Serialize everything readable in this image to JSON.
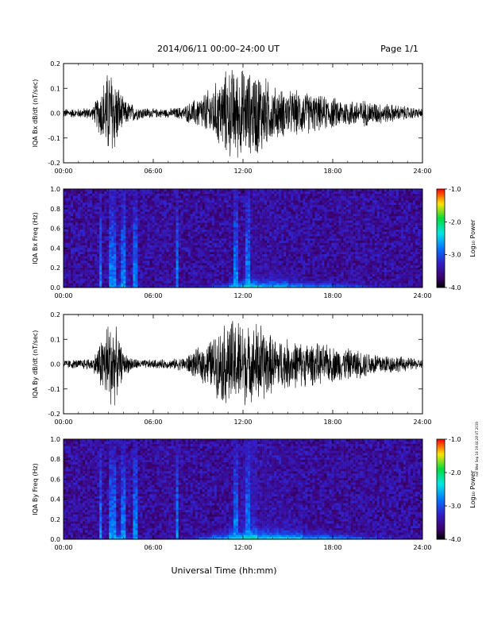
{
  "header": {
    "title": "2014/06/11   00:00–24:00 UT",
    "page": "Page 1/1"
  },
  "side_note": "ndf Wed Sep 18 19:44:28 UT 2019",
  "x_axis_label": "Universal Time (hh:mm)",
  "colorbar": {
    "label": "Log₁₀ Power",
    "ticks": [
      "-1.0",
      "-2.0",
      "-3.0",
      "-4.0"
    ],
    "range": [
      -4.0,
      -1.0
    ]
  },
  "chart_data": [
    {
      "type": "line",
      "ylabel": "IQA Bx dB/dt (nT/sec)",
      "xlim": [
        0,
        24
      ],
      "ylim": [
        -0.2,
        0.2
      ],
      "x_tick_labels": [
        "00:00",
        "06:00",
        "12:00",
        "18:00",
        "24:00"
      ],
      "y_tick_labels": [
        "0.2",
        "0.1",
        "0.0",
        "-0.1",
        "-0.2"
      ],
      "series": [
        {
          "x": [
            0,
            1,
            2,
            3,
            3.3,
            4,
            5,
            6,
            7,
            8,
            9,
            10,
            11,
            11.5,
            12,
            12.5,
            13,
            14,
            15,
            16,
            17,
            18,
            19,
            20,
            21,
            22,
            23,
            24
          ],
          "y": [
            0.02,
            0.02,
            0.03,
            0.2,
            0.2,
            0.06,
            0.03,
            0.02,
            0.02,
            0.03,
            0.07,
            0.12,
            0.2,
            0.2,
            0.2,
            0.18,
            0.2,
            0.12,
            0.1,
            0.1,
            0.08,
            0.07,
            0.06,
            0.06,
            0.05,
            0.04,
            0.03,
            0.02
          ]
        }
      ]
    },
    {
      "type": "heatmap",
      "ylabel": "IQA Bx Freq (Hz)",
      "xlim": [
        0,
        24
      ],
      "ylim": [
        0.0,
        1.0
      ],
      "x_tick_labels": [
        "00:00",
        "06:00",
        "12:00",
        "18:00",
        "24:00"
      ],
      "y_tick_labels": [
        "1.0",
        "0.8",
        "0.6",
        "0.4",
        "0.2",
        "0.0"
      ],
      "bright_times_h": [
        2.5,
        3.2,
        3.4,
        4.0,
        4.8,
        7.6,
        11.5,
        12.3
      ],
      "low_freq_band_power": [
        -3.8,
        -3.6,
        -3.4,
        -2.6,
        -3.0,
        -3.3,
        -3.4,
        -3.4,
        -3.2,
        -3.0,
        -2.8,
        -2.4,
        -2.2,
        -2.3,
        -2.3,
        -2.5,
        -2.6,
        -2.6,
        -2.7,
        -2.8,
        -3.0,
        -3.1,
        -3.3,
        -3.4,
        -3.5
      ]
    },
    {
      "type": "line",
      "ylabel": "IQA By dB/dt (nT/sec)",
      "xlim": [
        0,
        24
      ],
      "ylim": [
        -0.2,
        0.2
      ],
      "x_tick_labels": [
        "00:00",
        "06:00",
        "12:00",
        "18:00",
        "24:00"
      ],
      "y_tick_labels": [
        "0.2",
        "0.1",
        "0.0",
        "-0.1",
        "-0.2"
      ],
      "series": [
        {
          "x": [
            0,
            1,
            2,
            3,
            3.3,
            4,
            5,
            6,
            7,
            8,
            9,
            10,
            11,
            11.5,
            12,
            12.5,
            13,
            14,
            15,
            16,
            17,
            18,
            19,
            20,
            21,
            22,
            23,
            24
          ],
          "y": [
            0.02,
            0.02,
            0.03,
            0.2,
            0.2,
            0.05,
            0.02,
            0.02,
            0.02,
            0.03,
            0.07,
            0.12,
            0.2,
            0.2,
            0.2,
            0.15,
            0.2,
            0.12,
            0.11,
            0.1,
            0.09,
            0.08,
            0.07,
            0.06,
            0.05,
            0.04,
            0.03,
            0.02
          ]
        }
      ]
    },
    {
      "type": "heatmap",
      "ylabel": "IQA By Freq (Hz)",
      "xlim": [
        0,
        24
      ],
      "ylim": [
        0.0,
        1.0
      ],
      "x_tick_labels": [
        "00:00",
        "06:00",
        "12:00",
        "18:00",
        "24:00"
      ],
      "y_tick_labels": [
        "1.0",
        "0.8",
        "0.6",
        "0.4",
        "0.2",
        "0.0"
      ],
      "bright_times_h": [
        2.5,
        3.2,
        3.4,
        4.0,
        4.8,
        7.6,
        11.5,
        12.3
      ],
      "low_freq_band_power": [
        -3.8,
        -3.6,
        -3.4,
        -2.5,
        -3.0,
        -3.3,
        -3.4,
        -3.4,
        -3.1,
        -2.8,
        -2.5,
        -2.2,
        -2.0,
        -2.2,
        -2.2,
        -2.3,
        -2.5,
        -2.5,
        -2.6,
        -2.7,
        -2.9,
        -3.0,
        -3.2,
        -3.3,
        -3.4
      ]
    }
  ]
}
